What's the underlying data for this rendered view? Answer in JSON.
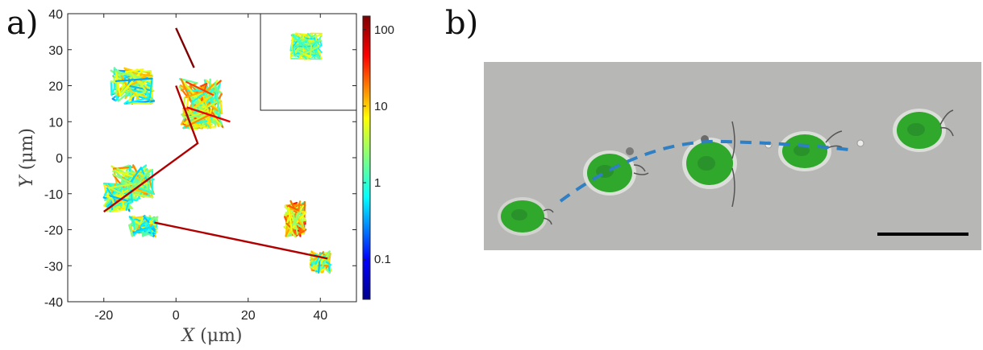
{
  "panels": {
    "a": {
      "label": "a)"
    },
    "b": {
      "label": "b)"
    }
  },
  "chart_data": {
    "type": "line",
    "title": "",
    "xlabel": "X (μm)",
    "ylabel": "Y (μm)",
    "xlabel_parts": {
      "var": "X",
      "unit": "(μm)"
    },
    "ylabel_parts": {
      "var": "Y",
      "unit": "(μm)"
    },
    "xlim": [
      -30,
      50
    ],
    "ylim": [
      -40,
      40
    ],
    "xticks": [
      -20,
      0,
      20,
      40
    ],
    "yticks": [
      -40,
      -30,
      -20,
      -10,
      0,
      10,
      20,
      30,
      40
    ],
    "grid": false,
    "colorbar": {
      "scale": "log",
      "range": [
        0.03,
        150
      ],
      "ticks": [
        {
          "value": 100,
          "label": "100"
        },
        {
          "value": 10,
          "label": "10"
        },
        {
          "value": 1,
          "label": "1"
        },
        {
          "value": 0.1,
          "label": "0.1"
        }
      ],
      "colormap": "jet"
    },
    "inset": {
      "position": "top-right",
      "content": "compact trajectory cluster"
    },
    "long_runs": [
      {
        "x": [
          -20,
          6,
          0
        ],
        "y": [
          -15,
          4,
          20
        ],
        "speed": 100
      },
      {
        "x": [
          -6,
          42
        ],
        "y": [
          -18,
          -28
        ],
        "speed": 100
      },
      {
        "x": [
          0,
          5
        ],
        "y": [
          36,
          25
        ],
        "speed": 150
      },
      {
        "x": [
          3,
          15
        ],
        "y": [
          14,
          10
        ],
        "speed": 60
      }
    ],
    "clusters": [
      {
        "cx": -12,
        "cy": 20,
        "rx": 6,
        "ry": 5,
        "speed": 2
      },
      {
        "cx": 7,
        "cy": 15,
        "rx": 6,
        "ry": 7,
        "speed": 5
      },
      {
        "cx": 6,
        "cy": 11,
        "rx": 4,
        "ry": 3,
        "speed": 5
      },
      {
        "cx": -12,
        "cy": -7,
        "rx": 6,
        "ry": 5,
        "speed": 3
      },
      {
        "cx": -16,
        "cy": -11,
        "rx": 4,
        "ry": 4,
        "speed": 2
      },
      {
        "cx": -9,
        "cy": -19,
        "rx": 4,
        "ry": 3,
        "speed": 2
      },
      {
        "cx": 33,
        "cy": -17,
        "rx": 3,
        "ry": 5,
        "speed": 8
      },
      {
        "cx": 40,
        "cy": -29,
        "rx": 3,
        "ry": 3,
        "speed": 3
      }
    ]
  },
  "photo": {
    "background": "#b6b7b4",
    "cell_color": "#2fa82c",
    "path_color": "#2f7fc4",
    "scale_bar_color": "#000000",
    "icon": "microscopy-image"
  }
}
